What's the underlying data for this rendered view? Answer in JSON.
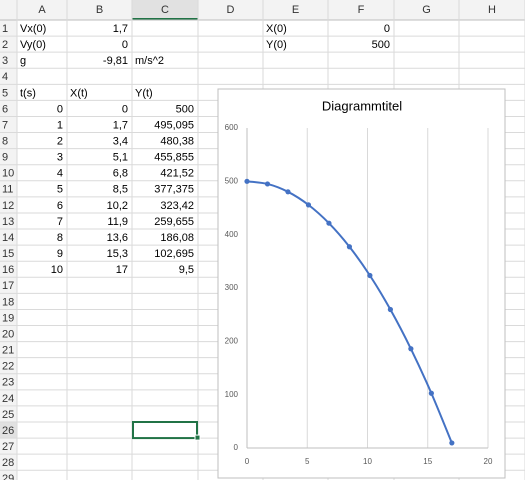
{
  "sheet": {
    "columns": [
      "A",
      "B",
      "C",
      "D",
      "E",
      "F",
      "G",
      "H"
    ],
    "row_numbers": [
      1,
      2,
      3,
      4,
      5,
      6,
      7,
      8,
      9,
      10,
      11,
      12,
      13,
      14,
      15,
      16,
      17,
      18,
      19,
      20,
      21,
      22,
      23,
      24,
      25,
      26,
      27,
      28,
      29
    ],
    "cells": [
      [
        "Vx(0)",
        "1,7",
        null,
        null,
        "X(0)",
        "0",
        null,
        null
      ],
      [
        "Vy(0)",
        "0",
        null,
        null,
        "Y(0)",
        "500",
        null,
        null
      ],
      [
        "g",
        "-9,81",
        "m/s^2",
        null,
        null,
        null,
        null,
        null
      ],
      [
        null,
        null,
        null,
        null,
        null,
        null,
        null,
        null
      ],
      [
        "t(s)",
        "X(t)",
        "Y(t)",
        null,
        null,
        null,
        null,
        null
      ],
      [
        "0",
        "0",
        "500",
        null,
        null,
        null,
        null,
        null
      ],
      [
        "1",
        "1,7",
        "495,095",
        null,
        null,
        null,
        null,
        null
      ],
      [
        "2",
        "3,4",
        "480,38",
        null,
        null,
        null,
        null,
        null
      ],
      [
        "3",
        "5,1",
        "455,855",
        null,
        null,
        null,
        null,
        null
      ],
      [
        "4",
        "6,8",
        "421,52",
        null,
        null,
        null,
        null,
        null
      ],
      [
        "5",
        "8,5",
        "377,375",
        null,
        null,
        null,
        null,
        null
      ],
      [
        "6",
        "10,2",
        "323,42",
        null,
        null,
        null,
        null,
        null
      ],
      [
        "7",
        "11,9",
        "259,655",
        null,
        null,
        null,
        null,
        null
      ],
      [
        "8",
        "13,6",
        "186,08",
        null,
        null,
        null,
        null,
        null
      ],
      [
        "9",
        "15,3",
        "102,695",
        null,
        null,
        null,
        null,
        null
      ],
      [
        "10",
        "17",
        "9,5",
        null,
        null,
        null,
        null,
        null
      ]
    ]
  },
  "chart_data": {
    "type": "scatter",
    "title": "Diagrammtitel",
    "x": [
      0,
      1.7,
      3.4,
      5.1,
      6.8,
      8.5,
      10.2,
      11.9,
      13.6,
      15.3,
      17
    ],
    "series": [
      {
        "color": "#4472c4",
        "values": [
          500,
          495.095,
          480.38,
          455.855,
          421.52,
          377.375,
          323.42,
          259.655,
          186.08,
          102.695,
          9.5
        ]
      }
    ],
    "xlim": [
      0,
      20
    ],
    "xticks": [
      0,
      5,
      10,
      15,
      20
    ],
    "ylim": [
      0,
      600
    ],
    "yticks": [
      0,
      100,
      200,
      300,
      400,
      500,
      600
    ],
    "grid": "vertical",
    "smooth": true
  }
}
